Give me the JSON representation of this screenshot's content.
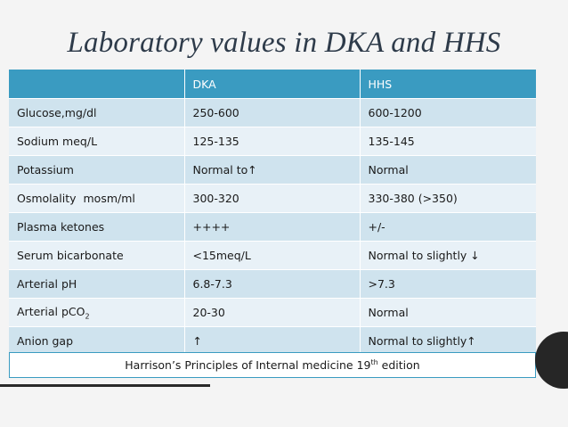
{
  "title": "Laboratory values in DKA and HHS",
  "table": {
    "headers": [
      "",
      "DKA",
      "HHS"
    ],
    "rows": [
      {
        "label": "Glucose,mg/dl",
        "dka": "250-600",
        "hhs": "600-1200"
      },
      {
        "label": "Sodium meq/L",
        "dka": "125-135",
        "hhs": "135-145"
      },
      {
        "label": "Potassium",
        "dka": "Normal to↑",
        "hhs": "Normal"
      },
      {
        "label": "Osmolality  mosm/ml",
        "dka": "300-320",
        "hhs": "330-380 (>350)"
      },
      {
        "label": "Plasma ketones",
        "dka": "++++",
        "hhs": "+/-"
      },
      {
        "label": "Serum bicarbonate",
        "dka": "<15meq/L",
        "hhs": "Normal to slightly ↓"
      },
      {
        "label": "Arterial pH",
        "dka": "6.8-7.3",
        "hhs": ">7.3"
      },
      {
        "label_main": "Arterial pCO",
        "label_sub": "2",
        "dka": "20-30",
        "hhs": "Normal"
      },
      {
        "label": "Anion gap",
        "dka": "↑",
        "hhs": "Normal to slightly↑"
      }
    ]
  },
  "source": {
    "text_before": "Harrison’s Principles of Internal medicine 19",
    "superscript": "th",
    "text_after": " edition"
  },
  "colors": {
    "header": "#3a9bc1",
    "row_odd": "#cfe3ee",
    "row_even": "#e8f1f7"
  }
}
